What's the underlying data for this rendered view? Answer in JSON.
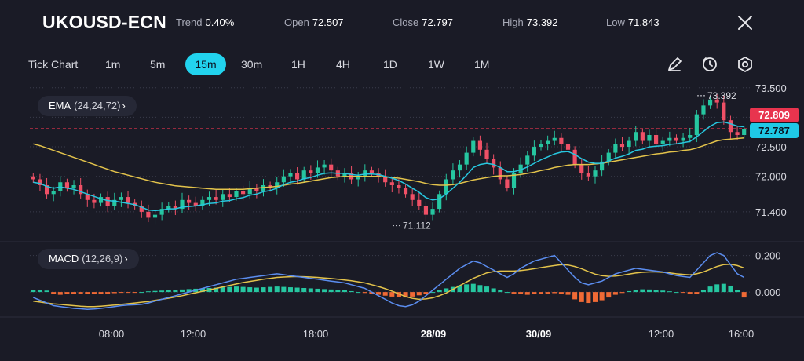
{
  "header": {
    "symbol": "UKOUSD-ECN",
    "stats": [
      {
        "label": "Trend",
        "value": "0.40%"
      },
      {
        "label": "Open",
        "value": "72.507"
      },
      {
        "label": "Close",
        "value": "72.797"
      },
      {
        "label": "High",
        "value": "73.392"
      },
      {
        "label": "Low",
        "value": "71.843"
      }
    ],
    "close_icon": "close-icon"
  },
  "toolbar": {
    "timeframes": [
      "Tick Chart",
      "1m",
      "5m",
      "15m",
      "30m",
      "1H",
      "4H",
      "1D",
      "1W",
      "1M"
    ],
    "active": "15m",
    "tools": [
      "pencil-icon",
      "clock-icon",
      "settings-hexagon-icon"
    ]
  },
  "indicators": {
    "ema": {
      "name": "EMA",
      "params": "(24,24,72)"
    },
    "macd": {
      "name": "MACD",
      "params": "(12,26,9)"
    }
  },
  "colors": {
    "background": "#1a1b26",
    "bullish": "#26c6a0",
    "bearish": "#ef5066",
    "ema_fast": "#27c7df",
    "ema_slow": "#e3c34b",
    "macd_line": "#5b8def",
    "signal_line": "#e3c34b",
    "hist_pos": "#26c6a0",
    "hist_neg": "#f06a35",
    "active_timeframe": "#22d3ee",
    "ask_label": "#e8344e",
    "bid_label": "#1fc9e6"
  },
  "chart_data": [
    {
      "type": "candlestick",
      "x_ticks": [
        "08:00",
        "12:00",
        "18:00",
        "28/09",
        "30/09",
        "12:00",
        "16:00"
      ],
      "ylim": [
        71.0,
        73.55
      ],
      "y_ticks": [
        "73.500",
        "72.500",
        "72.000",
        "71.400"
      ],
      "price_labels": {
        "ask": "72.809",
        "bid": "72.787"
      },
      "annotations": [
        {
          "text": "73.392",
          "value": 73.392
        },
        {
          "text": "71.112",
          "value": 71.112
        }
      ],
      "close_series": [
        71.95,
        71.85,
        71.7,
        71.75,
        71.9,
        71.8,
        71.85,
        71.7,
        71.6,
        71.55,
        71.65,
        71.5,
        71.6,
        71.65,
        71.55,
        71.5,
        71.4,
        71.3,
        71.35,
        71.45,
        71.5,
        71.45,
        71.6,
        71.55,
        71.5,
        71.6,
        71.65,
        71.6,
        71.7,
        71.65,
        71.75,
        71.7,
        71.8,
        71.75,
        71.85,
        71.8,
        71.9,
        72.0,
        72.05,
        71.95,
        72.1,
        72.05,
        72.15,
        72.2,
        72.1,
        72.0,
        72.05,
        71.95,
        72.0,
        72.1,
        72.05,
        72.0,
        71.9,
        71.85,
        71.8,
        71.7,
        71.6,
        71.5,
        71.35,
        71.45,
        71.7,
        71.95,
        72.1,
        72.2,
        72.4,
        72.6,
        72.45,
        72.3,
        72.15,
        71.95,
        71.8,
        72.05,
        72.2,
        72.35,
        72.5,
        72.55,
        72.6,
        72.65,
        72.55,
        72.45,
        72.2,
        72.05,
        72.0,
        72.1,
        72.25,
        72.4,
        72.55,
        72.5,
        72.6,
        72.75,
        72.6,
        72.7,
        72.55,
        72.6,
        72.65,
        72.6,
        72.65,
        72.7,
        73.05,
        73.2,
        73.3,
        73.25,
        72.95,
        72.75,
        72.7,
        72.8
      ],
      "ema_fast": [
        71.9,
        71.88,
        71.83,
        71.8,
        71.82,
        71.8,
        71.78,
        71.74,
        71.7,
        71.66,
        71.62,
        71.59,
        71.58,
        71.56,
        71.54,
        71.52,
        71.48,
        71.43,
        71.42,
        71.43,
        71.45,
        71.45,
        71.48,
        71.49,
        71.5,
        71.52,
        71.54,
        71.55,
        71.58,
        71.59,
        71.62,
        71.64,
        71.68,
        71.7,
        71.74,
        71.76,
        71.8,
        71.86,
        71.9,
        71.92,
        71.96,
        71.98,
        72.02,
        72.05,
        72.06,
        72.05,
        72.05,
        72.03,
        72.02,
        72.04,
        72.04,
        72.03,
        72.0,
        71.97,
        71.93,
        71.87,
        71.8,
        71.73,
        71.64,
        71.6,
        71.62,
        71.7,
        71.8,
        71.9,
        72.02,
        72.15,
        72.2,
        72.22,
        72.2,
        72.15,
        72.08,
        72.08,
        72.11,
        72.16,
        72.22,
        72.28,
        72.33,
        72.38,
        72.41,
        72.42,
        72.37,
        72.3,
        72.24,
        72.22,
        72.22,
        72.26,
        72.31,
        72.34,
        72.38,
        72.44,
        72.46,
        72.5,
        72.51,
        72.52,
        72.54,
        72.55,
        72.57,
        72.59,
        72.67,
        72.76,
        72.85,
        72.91,
        72.92,
        72.89,
        72.85,
        72.84
      ],
      "ema_slow": [
        72.55,
        72.52,
        72.48,
        72.44,
        72.4,
        72.36,
        72.32,
        72.28,
        72.24,
        72.2,
        72.16,
        72.12,
        72.08,
        72.05,
        72.02,
        71.99,
        71.96,
        71.93,
        71.9,
        71.88,
        71.86,
        71.84,
        71.83,
        71.82,
        71.81,
        71.8,
        71.79,
        71.78,
        71.78,
        71.78,
        71.78,
        71.78,
        71.79,
        71.8,
        71.81,
        71.82,
        71.83,
        71.85,
        71.87,
        71.88,
        71.9,
        71.92,
        71.94,
        71.96,
        71.98,
        71.99,
        72.0,
        72.0,
        72.0,
        72.0,
        72.0,
        72.0,
        71.99,
        71.98,
        71.97,
        71.95,
        71.93,
        71.91,
        71.88,
        71.86,
        71.85,
        71.85,
        71.86,
        71.88,
        71.91,
        71.94,
        71.96,
        71.98,
        72.0,
        72.01,
        72.01,
        72.02,
        72.03,
        72.05,
        72.07,
        72.1,
        72.12,
        72.15,
        72.17,
        72.19,
        72.2,
        72.2,
        72.2,
        72.21,
        72.22,
        72.24,
        72.26,
        72.28,
        72.3,
        72.32,
        72.34,
        72.36,
        72.38,
        72.39,
        72.41,
        72.42,
        72.44,
        72.45,
        72.48,
        72.52,
        72.56,
        72.6,
        72.62,
        72.63,
        72.64,
        72.65
      ]
    },
    {
      "type": "bar",
      "ylim": [
        -0.12,
        0.25
      ],
      "y_ticks": [
        "0.200",
        "0.000"
      ],
      "histogram": [
        0.01,
        0.012,
        0.008,
        -0.01,
        -0.015,
        -0.012,
        -0.01,
        -0.008,
        -0.01,
        -0.012,
        -0.01,
        -0.008,
        -0.006,
        -0.004,
        -0.003,
        -0.002,
        0.0,
        0.004,
        0.006,
        0.008,
        0.01,
        0.012,
        0.014,
        0.016,
        0.018,
        0.02,
        0.022,
        0.024,
        0.026,
        0.028,
        0.03,
        0.028,
        0.026,
        0.024,
        0.026,
        0.028,
        0.03,
        0.028,
        0.026,
        0.024,
        0.022,
        0.02,
        0.018,
        0.016,
        0.014,
        0.012,
        0.01,
        0.005,
        0.0,
        -0.005,
        -0.01,
        -0.015,
        -0.02,
        -0.025,
        -0.028,
        -0.03,
        -0.025,
        -0.018,
        -0.01,
        0.0,
        0.012,
        0.02,
        0.028,
        0.036,
        0.042,
        0.045,
        0.038,
        0.03,
        0.02,
        0.01,
        0.0,
        -0.008,
        -0.012,
        -0.015,
        -0.012,
        -0.01,
        -0.008,
        -0.006,
        -0.01,
        -0.015,
        -0.04,
        -0.055,
        -0.06,
        -0.055,
        -0.045,
        -0.03,
        -0.015,
        -0.005,
        0.005,
        0.012,
        0.015,
        0.014,
        0.012,
        0.008,
        0.004,
        0.0,
        -0.004,
        -0.008,
        -0.01,
        0.01,
        0.03,
        0.042,
        0.045,
        0.035,
        0.01,
        -0.03
      ],
      "macd": [
        -0.03,
        -0.045,
        -0.06,
        -0.075,
        -0.08,
        -0.085,
        -0.09,
        -0.092,
        -0.095,
        -0.093,
        -0.09,
        -0.085,
        -0.08,
        -0.075,
        -0.072,
        -0.07,
        -0.068,
        -0.06,
        -0.05,
        -0.04,
        -0.03,
        -0.02,
        -0.01,
        0.0,
        0.01,
        0.02,
        0.03,
        0.04,
        0.05,
        0.06,
        0.07,
        0.075,
        0.08,
        0.085,
        0.09,
        0.095,
        0.1,
        0.095,
        0.09,
        0.085,
        0.08,
        0.075,
        0.07,
        0.065,
        0.06,
        0.055,
        0.05,
        0.04,
        0.03,
        0.02,
        0.0,
        -0.02,
        -0.04,
        -0.06,
        -0.075,
        -0.08,
        -0.07,
        -0.05,
        -0.02,
        0.01,
        0.04,
        0.07,
        0.1,
        0.13,
        0.15,
        0.17,
        0.16,
        0.14,
        0.12,
        0.1,
        0.08,
        0.1,
        0.13,
        0.15,
        0.17,
        0.18,
        0.19,
        0.2,
        0.16,
        0.12,
        0.08,
        0.05,
        0.04,
        0.05,
        0.06,
        0.08,
        0.1,
        0.11,
        0.12,
        0.13,
        0.125,
        0.12,
        0.115,
        0.11,
        0.1,
        0.09,
        0.085,
        0.08,
        0.12,
        0.16,
        0.2,
        0.215,
        0.2,
        0.15,
        0.1,
        0.08
      ],
      "signal": [
        -0.05,
        -0.055,
        -0.06,
        -0.065,
        -0.068,
        -0.072,
        -0.075,
        -0.078,
        -0.08,
        -0.08,
        -0.078,
        -0.075,
        -0.072,
        -0.068,
        -0.064,
        -0.06,
        -0.056,
        -0.052,
        -0.046,
        -0.04,
        -0.034,
        -0.027,
        -0.02,
        -0.012,
        -0.004,
        0.004,
        0.012,
        0.02,
        0.028,
        0.036,
        0.044,
        0.052,
        0.058,
        0.064,
        0.07,
        0.075,
        0.08,
        0.082,
        0.084,
        0.085,
        0.084,
        0.082,
        0.08,
        0.077,
        0.074,
        0.07,
        0.066,
        0.062,
        0.056,
        0.05,
        0.04,
        0.03,
        0.018,
        0.005,
        -0.01,
        -0.025,
        -0.035,
        -0.04,
        -0.038,
        -0.032,
        -0.02,
        -0.005,
        0.015,
        0.035,
        0.055,
        0.075,
        0.09,
        0.105,
        0.112,
        0.115,
        0.115,
        0.115,
        0.118,
        0.122,
        0.128,
        0.134,
        0.14,
        0.145,
        0.15,
        0.148,
        0.14,
        0.128,
        0.112,
        0.098,
        0.09,
        0.086,
        0.088,
        0.092,
        0.098,
        0.104,
        0.108,
        0.11,
        0.11,
        0.108,
        0.105,
        0.1,
        0.097,
        0.094,
        0.1,
        0.11,
        0.125,
        0.14,
        0.15,
        0.152,
        0.145,
        0.132
      ]
    }
  ]
}
